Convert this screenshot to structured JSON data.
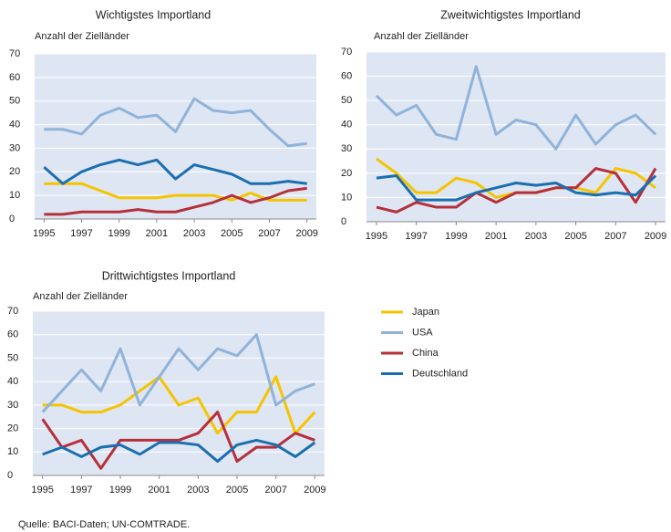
{
  "chart_data": [
    {
      "type": "line",
      "title": "Wichtigstes Importland",
      "y_label": "Anzahl der Zielländer",
      "x": [
        1995,
        1996,
        1997,
        1998,
        1999,
        2000,
        2001,
        2002,
        2003,
        2004,
        2005,
        2006,
        2007,
        2008,
        2009
      ],
      "xlim": [
        1994.5,
        2009.5
      ],
      "xticks": [
        1995,
        1997,
        1999,
        2001,
        2003,
        2005,
        2007,
        2009
      ],
      "ylim": [
        0,
        70
      ],
      "yticks": [
        0,
        10,
        20,
        30,
        40,
        50,
        60,
        70
      ],
      "grid": true,
      "series": [
        {
          "name": "Japan",
          "color": "#f5c400",
          "values": [
            15,
            15,
            15,
            12,
            9,
            9,
            9,
            10,
            10,
            10,
            8,
            11,
            8,
            8,
            8
          ]
        },
        {
          "name": "USA",
          "color": "#8fb3d9",
          "values": [
            38,
            38,
            36,
            44,
            47,
            43,
            44,
            37,
            51,
            46,
            45,
            46,
            38,
            31,
            32
          ]
        },
        {
          "name": "China",
          "color": "#b5303a",
          "values": [
            2,
            2,
            3,
            3,
            3,
            4,
            3,
            3,
            5,
            7,
            10,
            7,
            9,
            12,
            13
          ]
        },
        {
          "name": "Deutschland",
          "color": "#1a6fb0",
          "values": [
            22,
            15,
            20,
            23,
            25,
            23,
            25,
            17,
            23,
            21,
            19,
            15,
            15,
            16,
            15
          ]
        }
      ]
    },
    {
      "type": "line",
      "title": "Zweitwichtigstes Importland",
      "y_label": "Anzahl der Zielländer",
      "x": [
        1995,
        1996,
        1997,
        1998,
        1999,
        2000,
        2001,
        2002,
        2003,
        2004,
        2005,
        2006,
        2007,
        2008,
        2009
      ],
      "xlim": [
        1994.5,
        2009.5
      ],
      "xticks": [
        1995,
        1997,
        1999,
        2001,
        2003,
        2005,
        2007,
        2009
      ],
      "ylim": [
        0,
        70
      ],
      "yticks": [
        0,
        10,
        20,
        30,
        40,
        50,
        60,
        70
      ],
      "grid": true,
      "series": [
        {
          "name": "Japan",
          "color": "#f5c400",
          "values": [
            26,
            20,
            12,
            12,
            18,
            16,
            10,
            12,
            12,
            14,
            14,
            12,
            22,
            20,
            14
          ]
        },
        {
          "name": "USA",
          "color": "#8fb3d9",
          "values": [
            52,
            44,
            48,
            36,
            34,
            64,
            36,
            42,
            40,
            30,
            44,
            32,
            40,
            44,
            36
          ]
        },
        {
          "name": "China",
          "color": "#b5303a",
          "values": [
            6,
            4,
            8,
            6,
            6,
            12,
            8,
            12,
            12,
            14,
            14,
            22,
            20,
            8,
            22
          ]
        },
        {
          "name": "Deutschland",
          "color": "#1a6fb0",
          "values": [
            18,
            19,
            9,
            9,
            9,
            12,
            14,
            16,
            15,
            16,
            12,
            11,
            12,
            11,
            19
          ]
        }
      ]
    },
    {
      "type": "line",
      "title": "Drittwichtigstes Importland",
      "y_label": "Anzahl der Zielländer",
      "x": [
        1995,
        1996,
        1997,
        1998,
        1999,
        2000,
        2001,
        2002,
        2003,
        2004,
        2005,
        2006,
        2007,
        2008,
        2009
      ],
      "xlim": [
        1994.5,
        2009.5
      ],
      "xticks": [
        1995,
        1997,
        1999,
        2001,
        2003,
        2005,
        2007,
        2009
      ],
      "ylim": [
        0,
        70
      ],
      "yticks": [
        0,
        10,
        20,
        30,
        40,
        50,
        60,
        70
      ],
      "grid": true,
      "series": [
        {
          "name": "Japan",
          "color": "#f5c400",
          "values": [
            30,
            30,
            27,
            27,
            30,
            36,
            42,
            30,
            33,
            18,
            27,
            27,
            42,
            18,
            27
          ]
        },
        {
          "name": "USA",
          "color": "#8fb3d9",
          "values": [
            27,
            36,
            45,
            36,
            54,
            30,
            42,
            54,
            45,
            54,
            51,
            60,
            30,
            36,
            39
          ]
        },
        {
          "name": "China",
          "color": "#b5303a",
          "values": [
            24,
            12,
            15,
            3,
            15,
            15,
            15,
            15,
            18,
            27,
            6,
            12,
            12,
            18,
            15
          ]
        },
        {
          "name": "Deutschland",
          "color": "#1a6fb0",
          "values": [
            9,
            12,
            8,
            12,
            13,
            9,
            14,
            14,
            13,
            6,
            13,
            15,
            13,
            8,
            14
          ]
        }
      ]
    }
  ],
  "source": "Quelle: BACI-Daten; UN-COMTRADE."
}
